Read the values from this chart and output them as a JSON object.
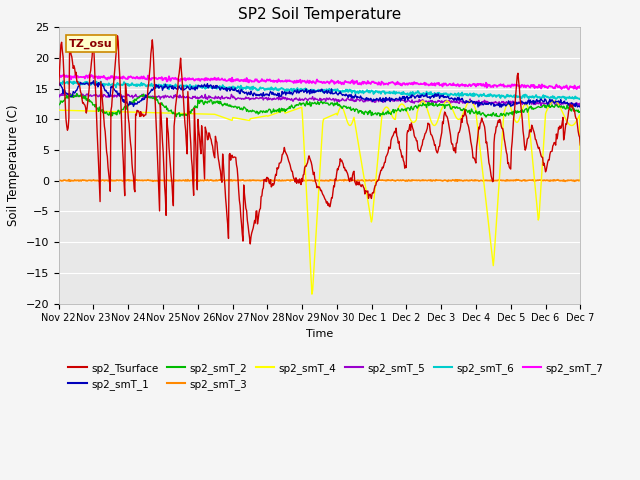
{
  "title": "SP2 Soil Temperature",
  "ylabel": "Soil Temperature (C)",
  "xlabel": "Time",
  "ylim": [
    -20,
    25
  ],
  "fig_bg": "#f5f5f5",
  "plot_bg": "#e8e8e8",
  "grid_color": "#ffffff",
  "tz_label": "TZ_osu",
  "series_colors": {
    "sp2_Tsurface": "#cc0000",
    "sp2_smT_1": "#0000bb",
    "sp2_smT_2": "#00bb00",
    "sp2_smT_3": "#ff8800",
    "sp2_smT_4": "#ffff00",
    "sp2_smT_5": "#9900cc",
    "sp2_smT_6": "#00cccc",
    "sp2_smT_7": "#ff00ff"
  },
  "x_tick_labels": [
    "Nov 22",
    "Nov 23",
    "Nov 24",
    "Nov 25",
    "Nov 26",
    "Nov 27",
    "Nov 28",
    "Nov 29",
    "Nov 30",
    "Dec 1",
    "Dec 2",
    "Dec 3",
    "Dec 4",
    "Dec 5",
    "Dec 6",
    "Dec 7"
  ],
  "figsize": [
    6.4,
    4.8
  ],
  "dpi": 100
}
